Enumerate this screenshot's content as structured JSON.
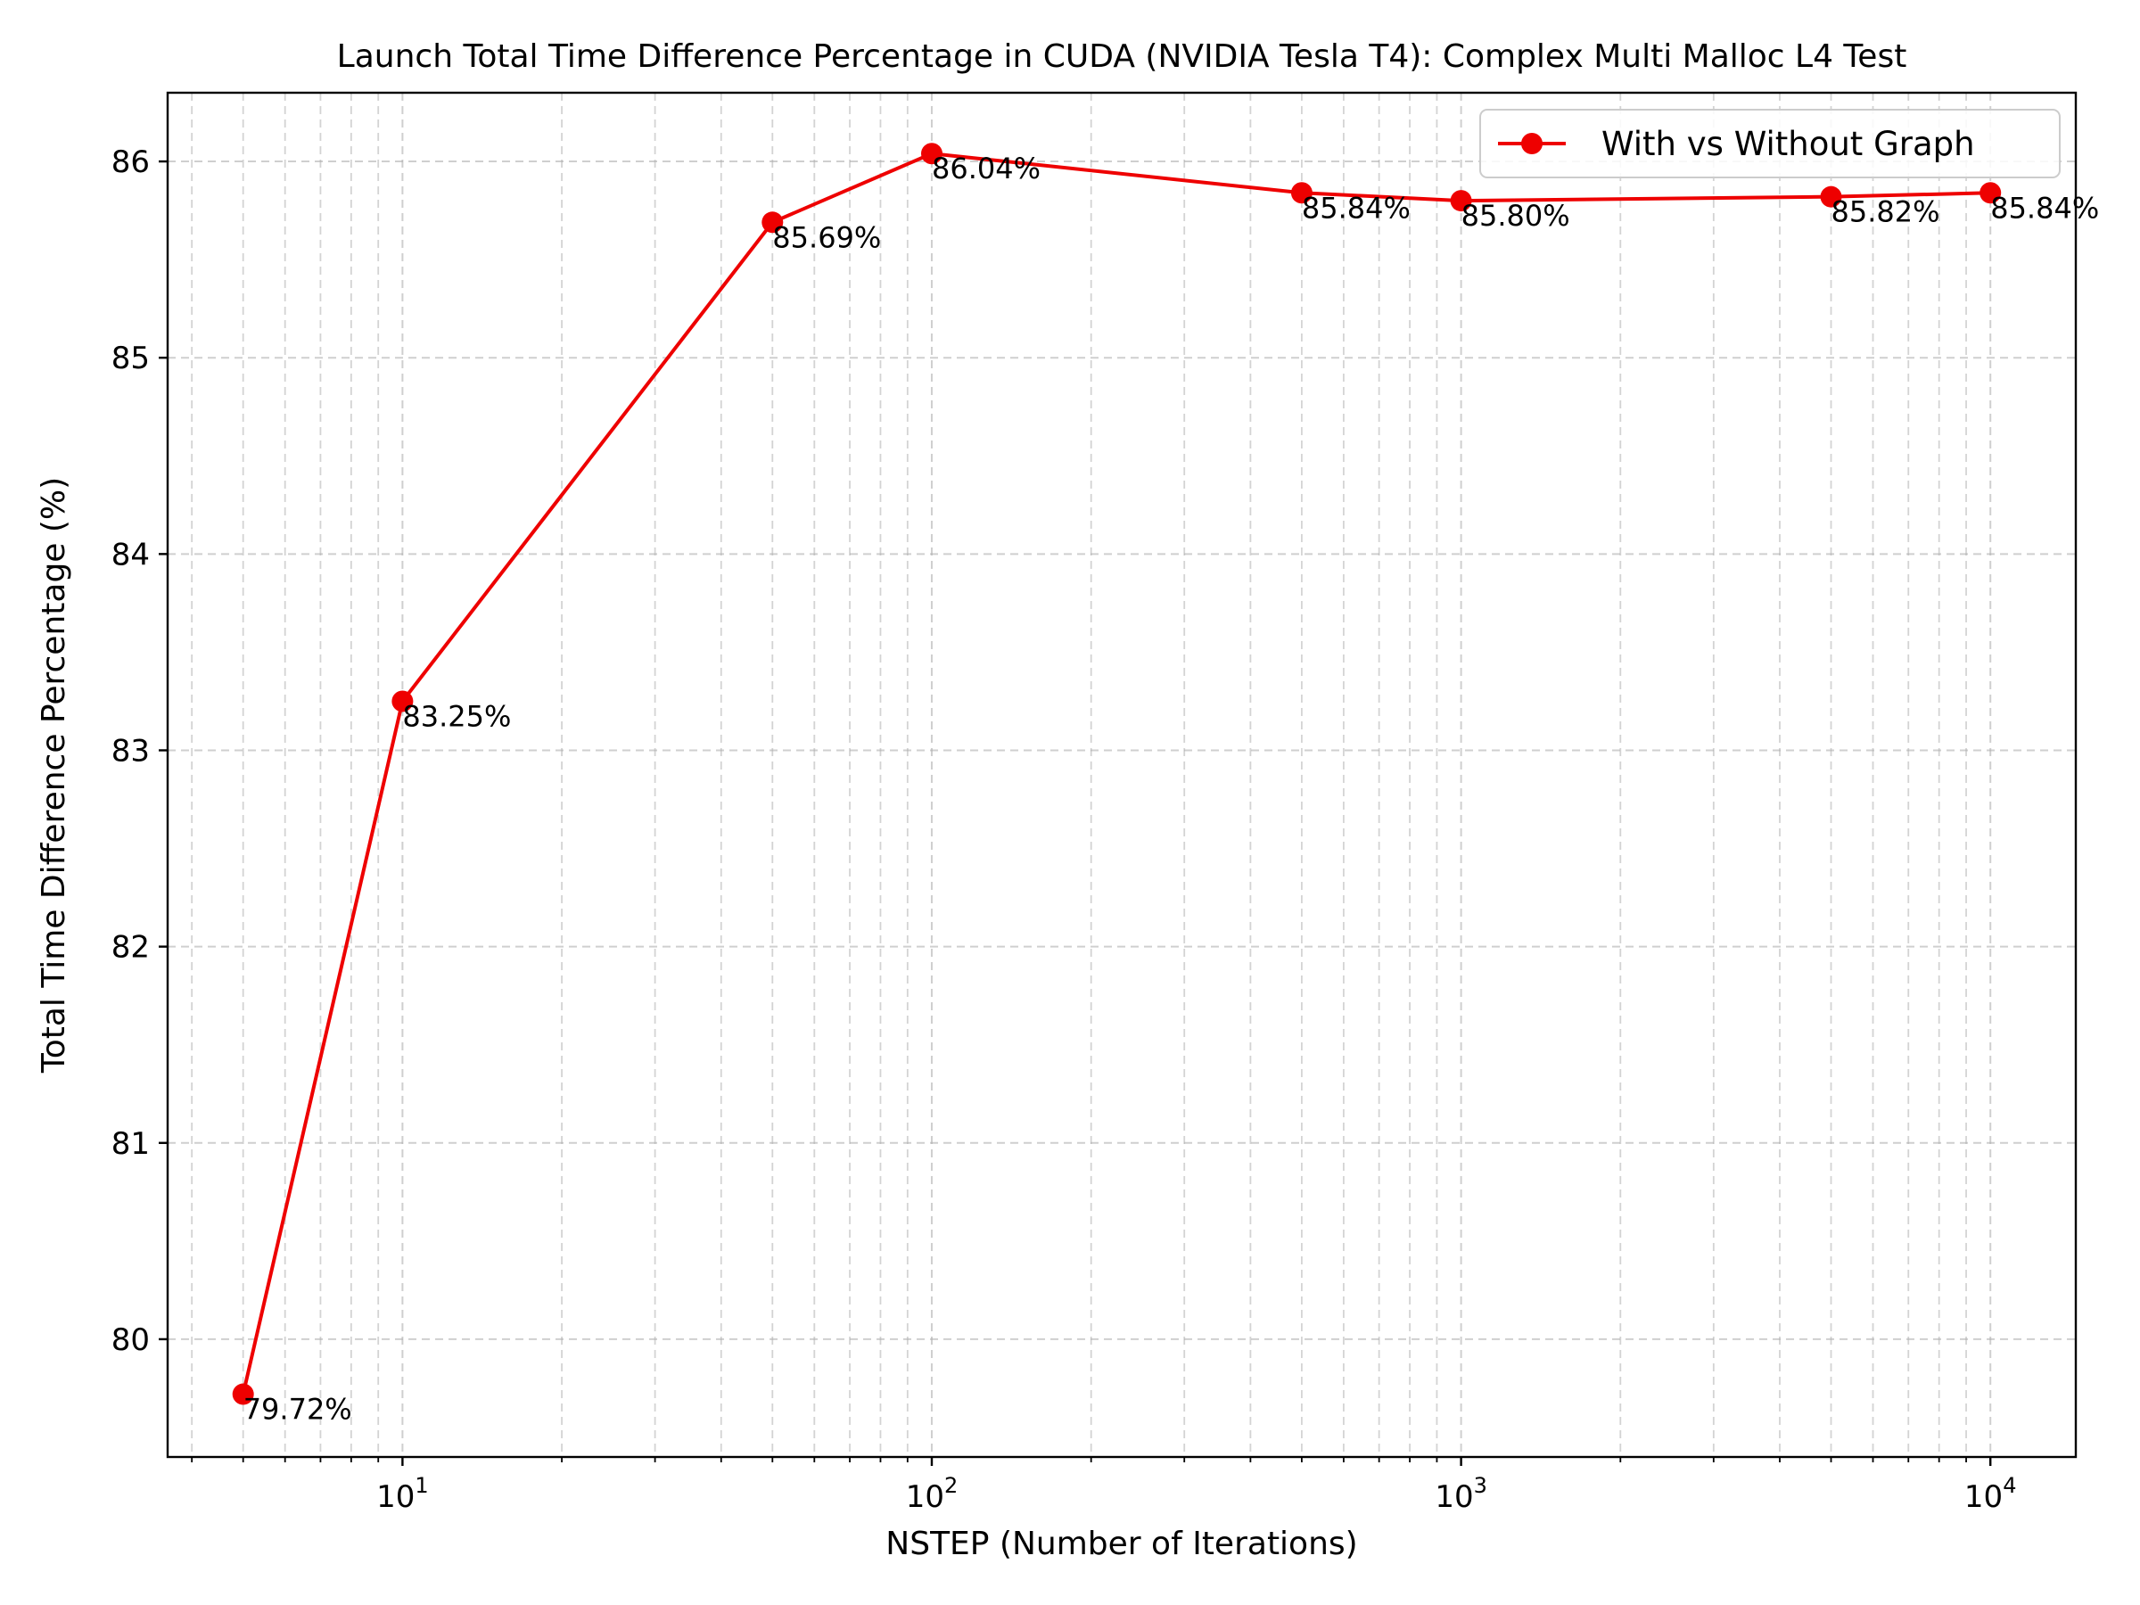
{
  "chart_data": {
    "type": "line",
    "title": "Launch Total Time Difference Percentage in CUDA (NVIDIA Tesla T4): Complex Multi Malloc L4 Test",
    "xlabel": "NSTEP (Number of Iterations)",
    "ylabel": "Total Time Difference Percentage (%)",
    "xscale": "log",
    "xlim": [
      3.6,
      14500
    ],
    "ylim": [
      79.4,
      86.35
    ],
    "grid": true,
    "legend_position": "top-right",
    "x_ticks": [
      {
        "value": 10,
        "base": "10",
        "exp": "1"
      },
      {
        "value": 100,
        "base": "10",
        "exp": "2"
      },
      {
        "value": 1000,
        "base": "10",
        "exp": "3"
      },
      {
        "value": 10000,
        "base": "10",
        "exp": "4"
      }
    ],
    "y_ticks": [
      80,
      81,
      82,
      83,
      84,
      85,
      86
    ],
    "x": [
      5,
      10,
      50,
      100,
      500,
      1000,
      5000,
      10000
    ],
    "series": [
      {
        "name": "With vs Without Graph",
        "color": "#ee0000",
        "marker": "circle",
        "values": [
          79.72,
          83.25,
          85.69,
          86.04,
          85.84,
          85.8,
          85.82,
          85.84
        ],
        "labels": [
          "79.72%",
          "83.25%",
          "85.69%",
          "86.04%",
          "85.84%",
          "85.80%",
          "85.82%",
          "85.84%"
        ]
      }
    ]
  }
}
